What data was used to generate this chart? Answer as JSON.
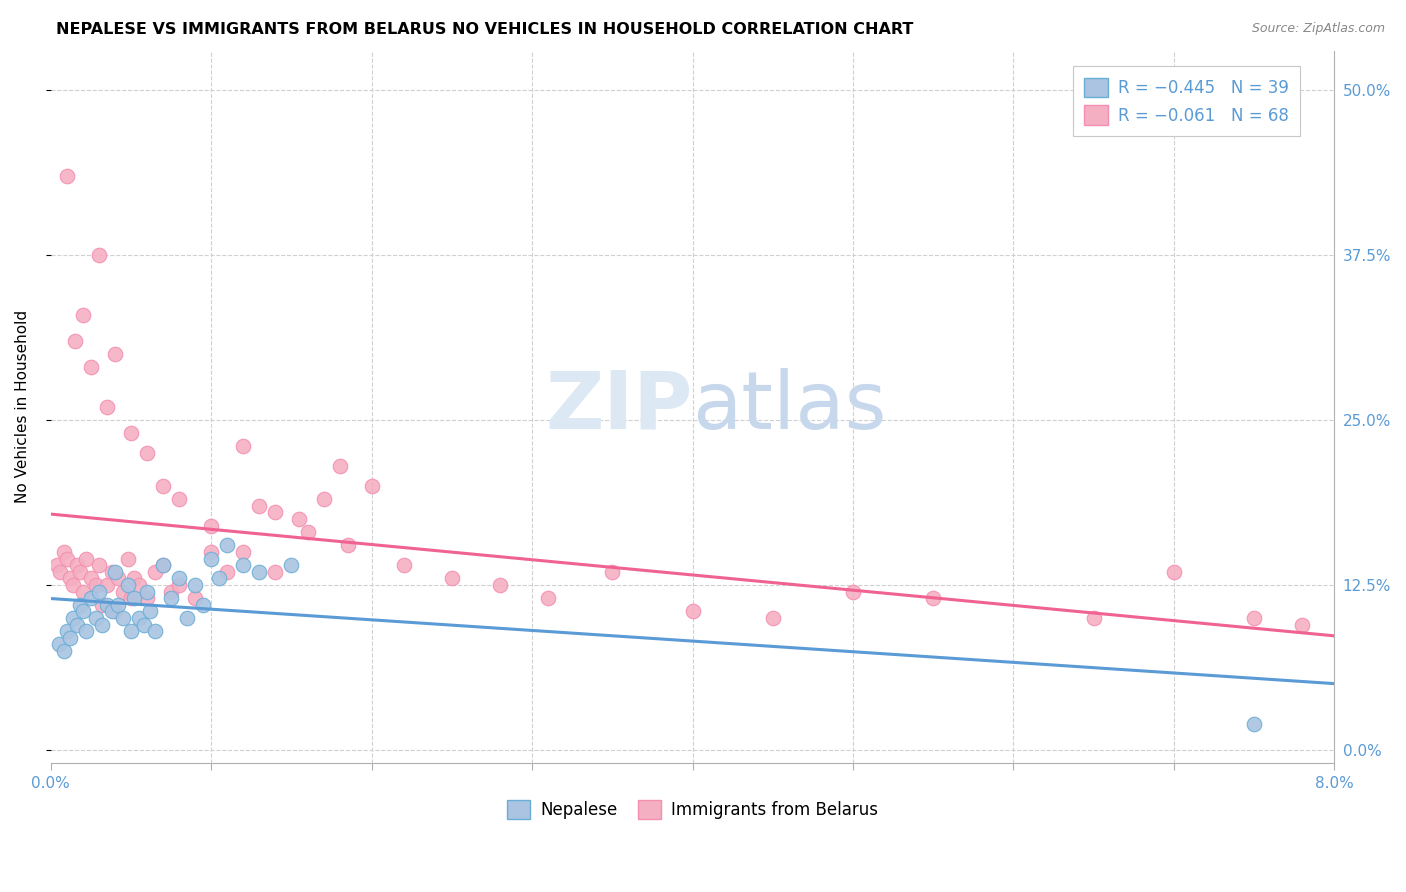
{
  "title": "NEPALESE VS IMMIGRANTS FROM BELARUS NO VEHICLES IN HOUSEHOLD CORRELATION CHART",
  "source": "Source: ZipAtlas.com",
  "ylabel": "No Vehicles in Household",
  "ytick_values": [
    0.0,
    12.5,
    25.0,
    37.5,
    50.0
  ],
  "xlim": [
    0.0,
    8.0
  ],
  "ylim": [
    -1.0,
    53.0
  ],
  "nepalese_color": "#aac4e2",
  "belarus_color": "#f5afc2",
  "nepalese_edge_color": "#6aaed6",
  "belarus_edge_color": "#f48fb1",
  "nepalese_line_color": "#5b9bd5",
  "belarus_line_color": "#f06292",
  "watermark_color": "#dce9f5",
  "legend_text_color": "#5b9bd5",
  "grid_color": "#d0d0d0",
  "title_fontsize": 11.5,
  "source_fontsize": 9,
  "tick_fontsize": 11,
  "nepalese_x": [
    0.05,
    0.08,
    0.1,
    0.12,
    0.14,
    0.16,
    0.18,
    0.2,
    0.22,
    0.25,
    0.28,
    0.3,
    0.32,
    0.35,
    0.38,
    0.4,
    0.42,
    0.45,
    0.48,
    0.5,
    0.52,
    0.55,
    0.58,
    0.6,
    0.62,
    0.65,
    0.7,
    0.75,
    0.8,
    0.85,
    0.9,
    0.95,
    1.0,
    1.05,
    1.1,
    1.2,
    1.3,
    1.5,
    7.5
  ],
  "nepalese_y": [
    8.0,
    7.5,
    9.0,
    8.5,
    10.0,
    9.5,
    11.0,
    10.5,
    9.0,
    11.5,
    10.0,
    12.0,
    9.5,
    11.0,
    10.5,
    13.5,
    11.0,
    10.0,
    12.5,
    9.0,
    11.5,
    10.0,
    9.5,
    12.0,
    10.5,
    9.0,
    14.0,
    11.5,
    13.0,
    10.0,
    12.5,
    11.0,
    14.5,
    13.0,
    15.5,
    14.0,
    13.5,
    14.0,
    2.0
  ],
  "belarus_x": [
    0.04,
    0.06,
    0.08,
    0.1,
    0.12,
    0.14,
    0.16,
    0.18,
    0.2,
    0.22,
    0.25,
    0.28,
    0.3,
    0.32,
    0.35,
    0.38,
    0.4,
    0.42,
    0.45,
    0.48,
    0.5,
    0.52,
    0.55,
    0.6,
    0.65,
    0.7,
    0.75,
    0.8,
    0.9,
    1.0,
    1.1,
    1.2,
    1.3,
    1.4,
    1.55,
    1.7,
    1.85,
    2.0,
    2.2,
    2.5,
    2.8,
    3.1,
    3.5,
    4.0,
    4.5,
    5.0,
    5.5,
    6.5,
    7.0,
    7.5,
    7.8,
    0.1,
    0.15,
    0.2,
    0.25,
    0.3,
    0.35,
    0.4,
    0.5,
    0.6,
    0.7,
    0.8,
    1.0,
    1.2,
    1.4,
    1.6,
    1.8
  ],
  "belarus_y": [
    14.0,
    13.5,
    15.0,
    14.5,
    13.0,
    12.5,
    14.0,
    13.5,
    12.0,
    14.5,
    13.0,
    12.5,
    14.0,
    11.0,
    12.5,
    13.5,
    10.5,
    13.0,
    12.0,
    14.5,
    11.5,
    13.0,
    12.5,
    11.5,
    13.5,
    14.0,
    12.0,
    12.5,
    11.5,
    15.0,
    13.5,
    15.0,
    18.5,
    13.5,
    17.5,
    19.0,
    15.5,
    20.0,
    14.0,
    13.0,
    12.5,
    11.5,
    13.5,
    10.5,
    10.0,
    12.0,
    11.5,
    10.0,
    13.5,
    10.0,
    9.5,
    43.5,
    31.0,
    33.0,
    29.0,
    37.5,
    26.0,
    30.0,
    24.0,
    22.5,
    20.0,
    19.0,
    17.0,
    23.0,
    18.0,
    16.5,
    21.5
  ]
}
